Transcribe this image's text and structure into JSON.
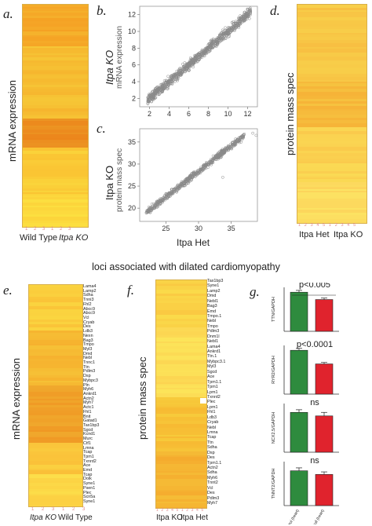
{
  "panels": {
    "a": {
      "letter": "a.",
      "ylabel": "mRNA expression",
      "ticks": "1 2 3 1 2 3",
      "groups": [
        "Wild Type",
        "Itpa KO"
      ]
    },
    "b": {
      "letter": "b.",
      "ylabel_top": "Itpa KO",
      "ylabel_bottom": "mRNA expression",
      "xticks": [
        "2",
        "4",
        "6",
        "8",
        "10",
        "12"
      ],
      "yticks": [
        "2",
        "4",
        "6",
        "8",
        "10",
        "12"
      ]
    },
    "c": {
      "letter": "c.",
      "ylabel_top": "Itpa KO",
      "ylabel_bottom": "protein mass spec",
      "xticks": [
        "25",
        "30",
        "35"
      ],
      "yticks": [
        "20",
        "25",
        "30",
        "35"
      ],
      "xlabel": "Itpa Het"
    },
    "d": {
      "letter": "d.",
      "ylabel": "protein mass spec",
      "ticks": "1 2 3 4 5 1 2 3 4 5",
      "groups": [
        "Itpa Het",
        "Itpa KO"
      ]
    },
    "e": {
      "letter": "e.",
      "ylabel": "mRNA expression",
      "ticks": "1 2 3 1 2 3",
      "groups": [
        "Itpa KO",
        "Wild Type"
      ],
      "genes": [
        "Lama4",
        "Lamp2",
        "Sdha",
        "Tnni3",
        "Fhl2",
        "Abcc9",
        "Abcc9",
        "Vcl",
        "Cryab",
        "Des",
        "Ldb3",
        "Nexn",
        "Bag3",
        "Tmpo",
        "Myl3",
        "Dmd",
        "Nebl",
        "Tnnc1",
        "Ttn",
        "Pdlm3",
        "Dsp",
        "Mybpc3",
        "Pln",
        "Myh6",
        "Ankrd1",
        "Actn2",
        "Myh7",
        "Actc1",
        "Fhl1",
        "Bnit",
        "Gatad1",
        "Tax1bp3",
        "Sgcd",
        "Kcnd1",
        "Murc",
        "Ctf1",
        "Lmna",
        "Tcap",
        "Tpm1",
        "Txnrd2",
        "Ace",
        "Emd",
        "Tcap",
        "Dolk",
        "Syne1",
        "Psen1",
        "Plec",
        "Scn5a",
        "Syne1"
      ]
    },
    "f": {
      "letter": "f.",
      "ylabel": "protein mass spec",
      "ticks": "1 2 3 4 5 1 2 3 4 5",
      "groups": [
        "Itpa KO",
        "Itpa Het"
      ],
      "genes": [
        "Tax1bp3",
        "Syne1",
        "Lamp2",
        "Dmd",
        "Nebl1",
        "Bag3",
        "Emd",
        "Tmpo.1",
        "Nebl",
        "Tmpo",
        "Pdlm3",
        "Dnm1l",
        "Nebl1",
        "Lama4",
        "Ankrd1",
        "Ttn.1",
        "Mybpc3.1",
        "Myl3",
        "Sgcd",
        "Ace",
        "Tpm1.1",
        "Tpm1",
        "Lpm1",
        "Txnrd2",
        "Plec",
        "Lpm1",
        "Fhl1",
        "Ldb3",
        "Cryab",
        "Nebl",
        "Lmna",
        "Tcap",
        "Ttn",
        "Sdha",
        "Dsp",
        "Des",
        "Tpm1.1",
        "Actn2",
        "Sdha",
        "Myh6",
        "Tnnt2",
        "Vcl",
        "Des",
        "Pdlm3",
        "Myh7"
      ]
    },
    "g": {
      "letter": "g."
    }
  },
  "middle_title": "loci associated with dilated cardiomyopathy",
  "chart_data": [
    {
      "type": "scatter",
      "panel": "b",
      "xlim": [
        1,
        13
      ],
      "ylim": [
        1,
        13
      ],
      "series": [
        {
          "x": [
            1.8,
            3,
            4.5,
            6,
            7.5,
            9,
            10.5,
            12.3
          ],
          "y": [
            1.8,
            3,
            4.5,
            6,
            7.5,
            9,
            10.5,
            12.3
          ]
        }
      ]
    },
    {
      "type": "scatter",
      "panel": "c",
      "xlim": [
        21,
        39
      ],
      "ylim": [
        17,
        38
      ],
      "series": [
        {
          "x": [
            22,
            25,
            28,
            31,
            34,
            37
          ],
          "y": [
            19,
            22.5,
            26,
            29.5,
            33,
            36.5
          ]
        }
      ]
    },
    {
      "type": "bar",
      "panel": "g1",
      "ylabel": "TTN/GAPDH",
      "annotation": "p<0.005",
      "categories": [
        "Control (heart)",
        "Itpa-null (heart)"
      ],
      "values": [
        0.32,
        0.26
      ],
      "errors": [
        0.015,
        0.012
      ],
      "colors": [
        "#2e8b3e",
        "#e0232d"
      ]
    },
    {
      "type": "bar",
      "panel": "g2",
      "ylabel": "RYR2/GAPDH",
      "annotation": "p<0.0001",
      "categories": [
        "Control (heart)",
        "Itpa-null (heart)"
      ],
      "values": [
        0.045,
        0.031
      ],
      "errors": [
        0.002,
        0.0015
      ],
      "colors": [
        "#2e8b3e",
        "#e0232d"
      ]
    },
    {
      "type": "bar",
      "panel": "g3",
      "ylabel": "NCX2.5/GAPDH",
      "annotation": "ns",
      "categories": [
        "Control (heart)",
        "Itpa-null (heart)"
      ],
      "values": [
        0.045,
        0.041
      ],
      "errors": [
        0.003,
        0.004
      ],
      "colors": [
        "#2e8b3e",
        "#e0232d"
      ]
    },
    {
      "type": "bar",
      "panel": "g4",
      "ylabel": "TNNT2/GAPDH",
      "annotation": "ns",
      "categories": [
        "Control (heart)",
        "Itpa-null (heart)"
      ],
      "values": [
        0.95,
        0.85
      ],
      "errors": [
        0.08,
        0.07
      ],
      "colors": [
        "#2e8b3e",
        "#e0232d"
      ]
    }
  ]
}
